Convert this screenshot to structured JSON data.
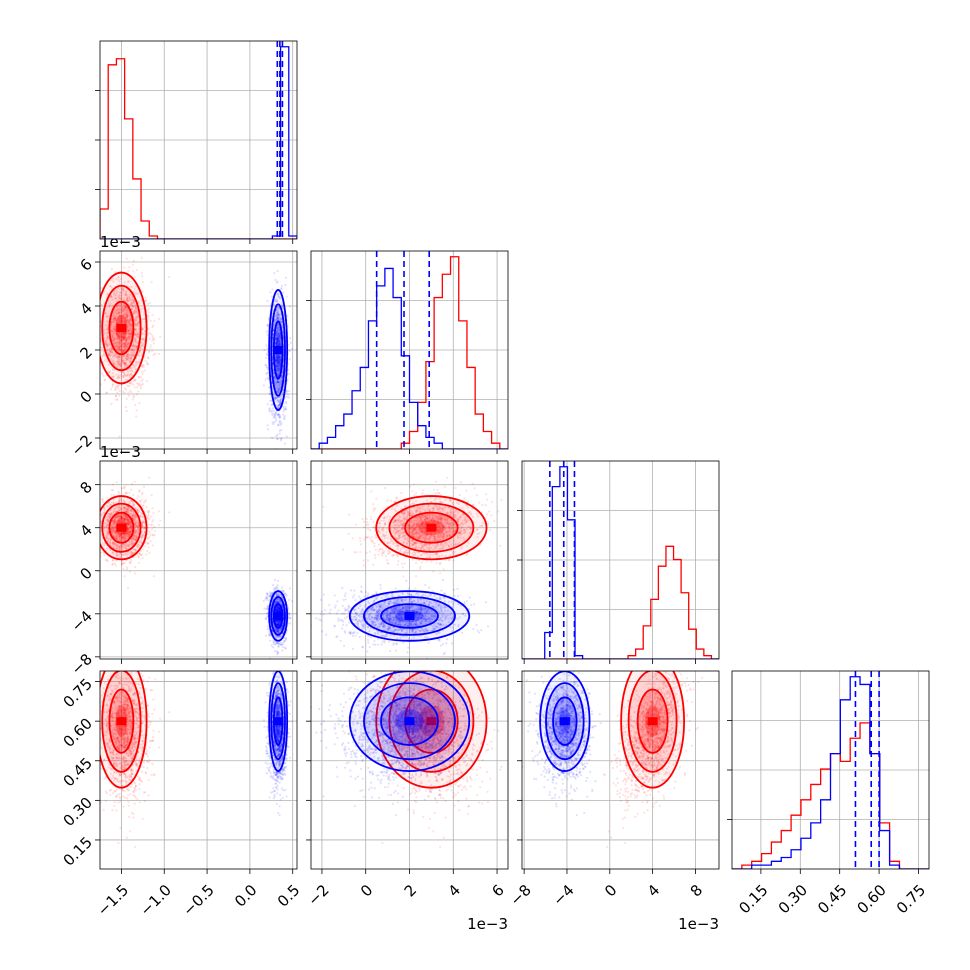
{
  "chart_data": {
    "type": "corner",
    "grid": true,
    "series": [
      {
        "color": "#ff0000"
      },
      {
        "color": "#0000ff"
      }
    ],
    "parameters": [
      {
        "range": [
          -1.75,
          0.55
        ],
        "ticks": [
          -1.5,
          -1.0,
          -0.5,
          0.0,
          0.5
        ],
        "tick_labels": [
          "−1.5",
          "−1.0",
          "−0.5",
          "0.0",
          "0.5"
        ],
        "exponent": ""
      },
      {
        "range": [
          -2.5,
          6.5
        ],
        "ticks": [
          -2,
          0,
          2,
          4,
          6
        ],
        "tick_labels": [
          "−2",
          "0",
          "2",
          "4",
          "6"
        ],
        "exponent": "1e−3"
      },
      {
        "range": [
          -8.2,
          10.2
        ],
        "ticks": [
          -8,
          -4,
          0,
          4,
          8
        ],
        "tick_labels": [
          "−8",
          "−4",
          "0",
          "4",
          "8"
        ],
        "exponent": "1e−3"
      },
      {
        "range": [
          0.04,
          0.79
        ],
        "ticks": [
          0.15,
          0.3,
          0.45,
          0.6,
          0.75
        ],
        "tick_labels": [
          "0.15",
          "0.30",
          "0.45",
          "0.60",
          "0.75"
        ],
        "exponent": ""
      }
    ],
    "histograms": [
      {
        "red": {
          "edges_range": [
            -1.75,
            0.55
          ],
          "counts": [
            10,
            58,
            60,
            40,
            20,
            6,
            1,
            0,
            0,
            0,
            0,
            0,
            0,
            0,
            0,
            0,
            0,
            0,
            0,
            0,
            0,
            0,
            0,
            0
          ]
        },
        "blue": {
          "edges_range": [
            -1.75,
            0.55
          ],
          "counts": [
            0,
            0,
            0,
            0,
            0,
            0,
            0,
            0,
            0,
            0,
            0,
            0,
            0,
            0,
            0,
            0,
            0,
            0,
            0,
            0,
            0,
            1,
            64,
            1
          ]
        },
        "blue_quantiles": [
          0.32,
          0.35,
          0.38
        ]
      },
      {
        "red": {
          "counts": [
            0,
            0,
            0,
            0,
            0,
            0,
            0,
            0,
            0,
            0,
            0,
            1,
            3,
            8,
            15,
            26,
            30,
            33,
            22,
            14,
            6,
            3,
            1,
            0
          ]
        },
        "blue": {
          "counts": [
            0,
            1,
            2,
            4,
            6,
            10,
            14,
            22,
            28,
            31,
            26,
            16,
            8,
            4,
            2,
            1,
            0,
            0,
            0,
            0,
            0,
            0,
            0,
            0
          ]
        },
        "blue_quantiles": [
          0.5,
          1.75,
          2.9
        ]
      },
      {
        "red": {
          "counts": [
            0,
            0,
            0,
            0,
            0,
            0,
            0,
            0,
            0,
            0,
            0,
            0,
            0,
            0,
            1,
            3,
            10,
            18,
            28,
            34,
            30,
            20,
            9,
            3,
            1,
            0
          ]
        },
        "blue": {
          "counts": [
            0,
            0,
            0,
            8,
            52,
            58,
            42,
            1,
            0,
            0,
            0,
            0,
            0,
            0,
            0,
            0,
            0,
            0,
            0,
            0,
            0,
            0,
            0,
            0,
            0,
            0
          ]
        },
        "blue_quantiles": [
          -5.6,
          -4.3,
          -3.3
        ]
      },
      {
        "red": {
          "counts": [
            0,
            1,
            2,
            4,
            7,
            10,
            14,
            18,
            22,
            26,
            30,
            28,
            34,
            38,
            30,
            12,
            2,
            0,
            0,
            0
          ]
        },
        "blue": {
          "counts": [
            0,
            0,
            1,
            1,
            2,
            3,
            5,
            8,
            12,
            18,
            30,
            44,
            50,
            48,
            30,
            10,
            1,
            0,
            0,
            0
          ]
        },
        "blue_quantiles": [
          0.51,
          0.57,
          0.6
        ]
      }
    ],
    "clouds": {
      "red": {
        "mean": [
          -1.45,
          2.7,
          4.0,
          0.55
        ],
        "sd": [
          0.14,
          1.2,
          1.4,
          0.12
        ],
        "mode": [
          -1.5,
          3.0,
          4.0,
          0.6
        ]
      },
      "blue": {
        "mean": [
          0.33,
          1.6,
          -4.2,
          0.56
        ],
        "sd": [
          0.05,
          1.3,
          1.1,
          0.09
        ],
        "mode": [
          0.33,
          2.0,
          -4.2,
          0.6
        ]
      }
    }
  }
}
